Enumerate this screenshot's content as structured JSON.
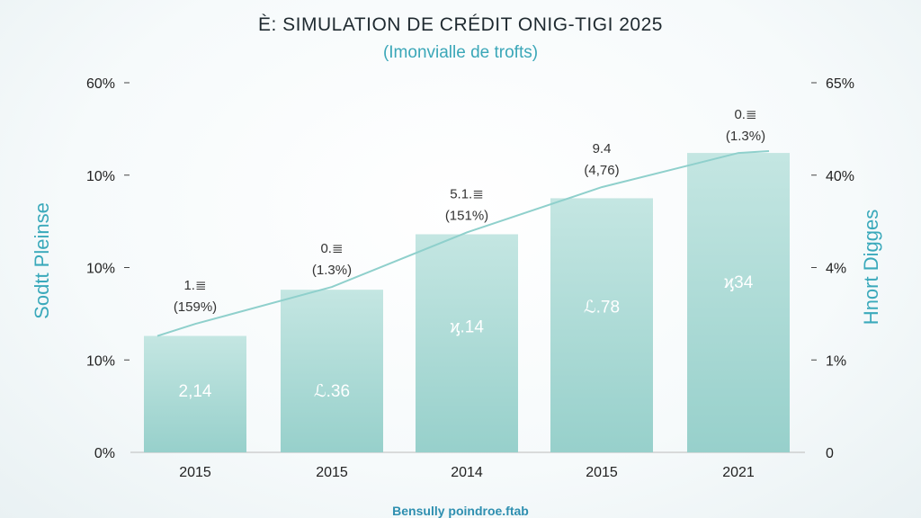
{
  "chart_data": {
    "type": "bar",
    "title": "È: SIMULATION DE CRÉDIT ONIG-TIGI 2025",
    "subtitle": "(Imonvialle de trofts)",
    "footer": "Bensully poindroe.ftab",
    "ylabel_left": "Sodtt Pleinse",
    "ylabel_right": "Hnort Digges",
    "ylim": [
      0,
      4
    ],
    "left_ticks": [
      "0%",
      "10%",
      "10%",
      "10%",
      "60%"
    ],
    "right_ticks": [
      "0",
      "1%",
      "4%",
      "40%",
      "65%"
    ],
    "categories": [
      "2015",
      "2015",
      "2014",
      "2015",
      "2021"
    ],
    "values": [
      1.26,
      1.76,
      2.36,
      2.75,
      3.24
    ],
    "inner_labels": [
      "2,14",
      "ℒ.36",
      "ϗ.14",
      "ℒ.78",
      "ϗ34"
    ],
    "top_labels": [
      "1.≣",
      "0.≣",
      "5.1.≣",
      "9.4",
      "0.≣"
    ],
    "pct_labels": [
      "(159%)",
      "(1.3%)",
      "(151%)",
      "(4,76)",
      "(1.3%)"
    ],
    "line_values": [
      1.39,
      1.79,
      2.38,
      2.87,
      3.24
    ],
    "grid": false,
    "colors": {
      "bar_top": "#c4e6e2",
      "bar_bottom": "#97d0cb",
      "line": "#8fd0cc",
      "accent": "#3aa9bb"
    }
  }
}
